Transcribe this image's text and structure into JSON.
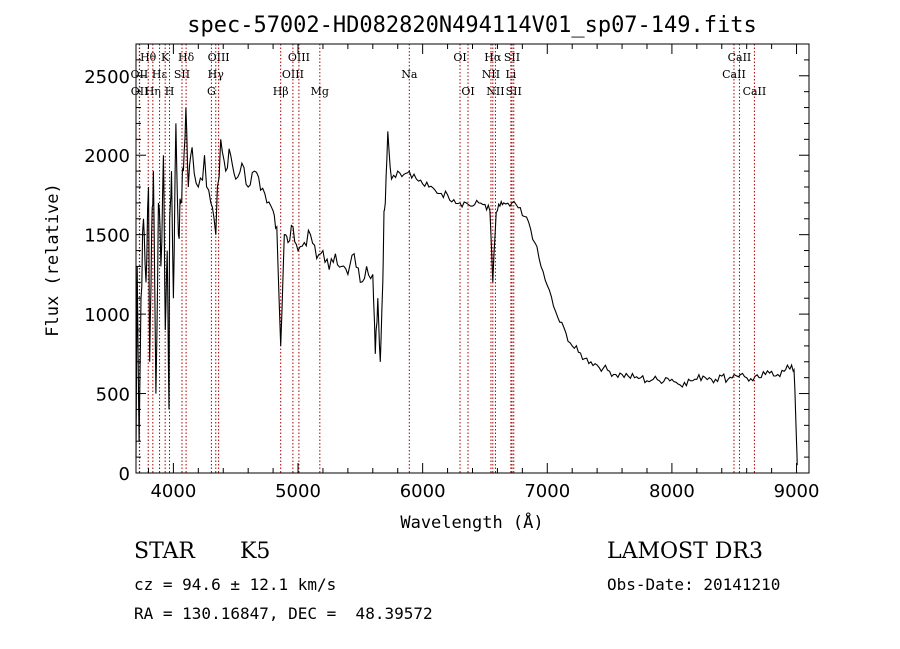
{
  "chart_data": {
    "type": "line",
    "title": "spec-57002-HD082820N494114V01_sp07-149.fits",
    "xlabel": "Wavelength (Å)",
    "ylabel": "Flux (relative)",
    "xlim": [
      3700,
      9100
    ],
    "ylim": [
      0,
      2700
    ],
    "xticks": [
      4000,
      5000,
      6000,
      7000,
      8000,
      9000
    ],
    "yticks": [
      0,
      500,
      1000,
      1500,
      2000,
      2500
    ],
    "grid": false,
    "line_color": "#000000",
    "marker_color": "#aa0000",
    "series": [
      {
        "x": [
          3700,
          3710,
          3725,
          3740,
          3760,
          3780,
          3800,
          3810,
          3825,
          3840,
          3860,
          3880,
          3900,
          3920,
          3935,
          3950,
          3965,
          3970,
          3985,
          4000,
          4020,
          4040,
          4060,
          4080,
          4100,
          4120,
          4150,
          4200,
          4250,
          4300,
          4340,
          4380,
          4420,
          4460,
          4500,
          4550,
          4600,
          4650,
          4700,
          4750,
          4800,
          4830,
          4861,
          4890,
          4920,
          4960,
          5000,
          5050,
          5100,
          5150,
          5200,
          5250,
          5300,
          5350,
          5400,
          5450,
          5500,
          5550,
          5600,
          5620,
          5640,
          5660,
          5680,
          5690,
          5700,
          5720,
          5750,
          5800,
          5850,
          5893,
          5950,
          6000,
          6050,
          6100,
          6150,
          6200,
          6250,
          6300,
          6350,
          6400,
          6450,
          6500,
          6540,
          6563,
          6590,
          6620,
          6650,
          6700,
          6750,
          6800,
          6850,
          6900,
          6950,
          7000,
          7050,
          7100,
          7150,
          7200,
          7250,
          7300,
          7350,
          7400,
          7450,
          7500,
          7550,
          7600,
          7650,
          7700,
          7750,
          7800,
          7850,
          7900,
          7950,
          8000,
          8050,
          8100,
          8150,
          8200,
          8250,
          8300,
          8350,
          8400,
          8450,
          8500,
          8550,
          8600,
          8650,
          8700,
          8750,
          8800,
          8850,
          8900,
          8940,
          8960,
          8980,
          9000,
          9005
        ],
        "y": [
          100,
          1300,
          200,
          1100,
          1600,
          1200,
          1800,
          700,
          1500,
          1900,
          500,
          1700,
          1300,
          2000,
          900,
          1400,
          400,
          1600,
          1900,
          1100,
          2200,
          1500,
          1700,
          1900,
          2300,
          1800,
          2050,
          1800,
          2000,
          1700,
          1500,
          2100,
          1900,
          2000,
          1850,
          1950,
          1800,
          1900,
          1780,
          1700,
          1650,
          1550,
          800,
          1500,
          1450,
          1550,
          1400,
          1450,
          1500,
          1350,
          1400,
          1280,
          1380,
          1300,
          1250,
          1380,
          1200,
          1300,
          1250,
          750,
          1100,
          700,
          1200,
          1650,
          1700,
          2150,
          1850,
          1900,
          1880,
          1900,
          1850,
          1820,
          1800,
          1780,
          1760,
          1750,
          1720,
          1700,
          1700,
          1680,
          1700,
          1690,
          1650,
          1200,
          1640,
          1680,
          1700,
          1680,
          1690,
          1620,
          1580,
          1450,
          1300,
          1180,
          1050,
          950,
          880,
          800,
          760,
          720,
          700,
          680,
          660,
          640,
          620,
          620,
          610,
          600,
          600,
          580,
          590,
          580,
          600,
          590,
          560,
          570,
          580,
          590,
          610,
          600,
          590,
          610,
          590,
          620,
          620,
          600,
          580,
          600,
          620,
          640,
          620,
          640,
          660,
          680,
          650,
          200,
          50
        ]
      }
    ],
    "lines": [
      {
        "label": "Hθ",
        "x": 3798,
        "row": 0
      },
      {
        "label": "OII",
        "x": 3727,
        "row": 1
      },
      {
        "label": "OII",
        "x": 3729,
        "row": 2
      },
      {
        "label": "Hη",
        "x": 3835,
        "row": 2
      },
      {
        "label": "Hε",
        "x": 3889,
        "row": 1
      },
      {
        "label": "K",
        "x": 3934,
        "row": 0
      },
      {
        "label": "H",
        "x": 3969,
        "row": 2
      },
      {
        "label": "SII",
        "x": 4069,
        "row": 1
      },
      {
        "label": "Hδ",
        "x": 4102,
        "row": 0
      },
      {
        "label": "OIII",
        "x": 4363,
        "row": 0
      },
      {
        "label": "Hγ",
        "x": 4340,
        "row": 1
      },
      {
        "label": "G",
        "x": 4305,
        "row": 2
      },
      {
        "label": "Hβ",
        "x": 4861,
        "row": 2
      },
      {
        "label": "OIII",
        "x": 5007,
        "row": 0
      },
      {
        "label": "OIII",
        "x": 4959,
        "row": 1
      },
      {
        "label": "Mg",
        "x": 5175,
        "row": 2
      },
      {
        "label": "Na",
        "x": 5893,
        "row": 1
      },
      {
        "label": "OI",
        "x": 6300,
        "row": 0
      },
      {
        "label": "OI",
        "x": 6364,
        "row": 2
      },
      {
        "label": "Hα",
        "x": 6563,
        "row": 0
      },
      {
        "label": "NII",
        "x": 6548,
        "row": 1
      },
      {
        "label": "NII",
        "x": 6584,
        "row": 2
      },
      {
        "label": "SII",
        "x": 6717,
        "row": 0
      },
      {
        "label": "Li",
        "x": 6708,
        "row": 1
      },
      {
        "label": "SII",
        "x": 6731,
        "row": 2
      },
      {
        "label": "CaII",
        "x": 8542,
        "row": 0
      },
      {
        "label": "CaII",
        "x": 8498,
        "row": 1
      },
      {
        "label": "CaII",
        "x": 8662,
        "row": 2
      }
    ]
  },
  "info": {
    "object_class": "STAR",
    "subclass": "K5",
    "survey": "LAMOST DR3",
    "cz": "cz = 94.6 ± 12.1 km/s",
    "obs_date": "Obs-Date: 20141210",
    "coords": "RA = 130.16847, DEC =  48.39572"
  }
}
